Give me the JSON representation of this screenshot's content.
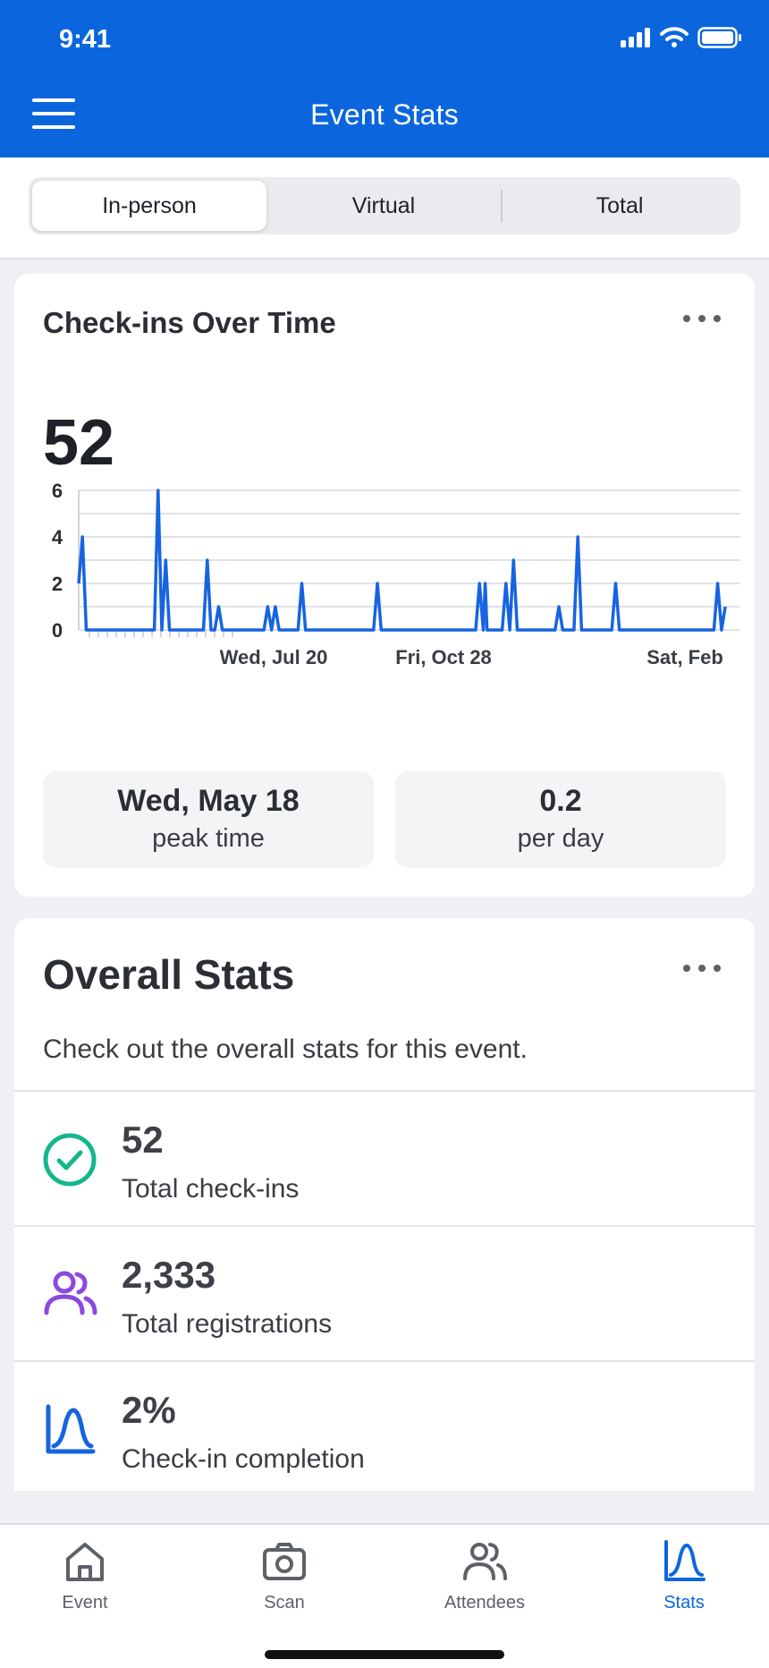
{
  "status_bar": {
    "time": "9:41"
  },
  "header": {
    "title": "Event Stats",
    "menu_icon": "hamburger-menu-icon"
  },
  "segments": [
    {
      "label": "In-person",
      "selected": true
    },
    {
      "label": "Virtual",
      "selected": false
    },
    {
      "label": "Total",
      "selected": false
    }
  ],
  "checkins_card": {
    "title": "Check-ins Over Time",
    "total": "52",
    "peak": {
      "value": "Wed, May 18",
      "label": "peak time"
    },
    "rate": {
      "value": "0.2",
      "label": "per day"
    }
  },
  "chart_data": {
    "type": "line",
    "x_tick_labels": [
      "Wed, Jul 20",
      "Fri, Oct 28",
      "Sat, Feb"
    ],
    "y_ticks": [
      0,
      2,
      4,
      6
    ],
    "ylim": [
      0,
      6
    ],
    "series": [
      {
        "color": "#1764e0",
        "points": [
          [
            0,
            2
          ],
          [
            1,
            4
          ],
          [
            2,
            0
          ],
          [
            20,
            0
          ],
          [
            21,
            6
          ],
          [
            22,
            0
          ],
          [
            23,
            3
          ],
          [
            24,
            0
          ],
          [
            33,
            0
          ],
          [
            34,
            3
          ],
          [
            35,
            0
          ],
          [
            36,
            0
          ],
          [
            37,
            1
          ],
          [
            38,
            0
          ],
          [
            49,
            0
          ],
          [
            50,
            1
          ],
          [
            51,
            0
          ],
          [
            52,
            1
          ],
          [
            53,
            0
          ],
          [
            58,
            0
          ],
          [
            59,
            2
          ],
          [
            60,
            0
          ],
          [
            78,
            0
          ],
          [
            79,
            2
          ],
          [
            80,
            0
          ],
          [
            105,
            0
          ],
          [
            106,
            2
          ],
          [
            107,
            0
          ],
          [
            107.5,
            2
          ],
          [
            108,
            0
          ],
          [
            112,
            0
          ],
          [
            113,
            2
          ],
          [
            114,
            0
          ],
          [
            115,
            3
          ],
          [
            116,
            0
          ],
          [
            126,
            0
          ],
          [
            127,
            1
          ],
          [
            128,
            0
          ],
          [
            131,
            0
          ],
          [
            132,
            4
          ],
          [
            133,
            0
          ],
          [
            141,
            0
          ],
          [
            142,
            2
          ],
          [
            143,
            0
          ],
          [
            168,
            0
          ],
          [
            169,
            2
          ],
          [
            170,
            0
          ],
          [
            171,
            1
          ]
        ]
      }
    ],
    "x_domain": [
      0,
      175
    ],
    "grid": true
  },
  "overall_card": {
    "title": "Overall Stats",
    "description": "Check out the overall stats for this event.",
    "rows": [
      {
        "value": "52",
        "label": "Total check-ins",
        "icon": "check-circle-icon",
        "color": "#14b78a"
      },
      {
        "value": "2,333",
        "label": "Total registrations",
        "icon": "users-icon",
        "color": "#8a49e0"
      },
      {
        "value": "2%",
        "label": "Check-in completion",
        "icon": "chart-curve-icon",
        "color": "#1764e0"
      }
    ]
  },
  "tabbar": {
    "tabs": [
      {
        "label": "Event",
        "icon": "home-icon",
        "active": false
      },
      {
        "label": "Scan",
        "icon": "camera-icon",
        "active": false
      },
      {
        "label": "Attendees",
        "icon": "users-icon",
        "active": false
      },
      {
        "label": "Stats",
        "icon": "chart-curve-icon",
        "active": true
      }
    ]
  },
  "colors": {
    "brand": "#0b66de",
    "active_tab": "#0b66de"
  }
}
